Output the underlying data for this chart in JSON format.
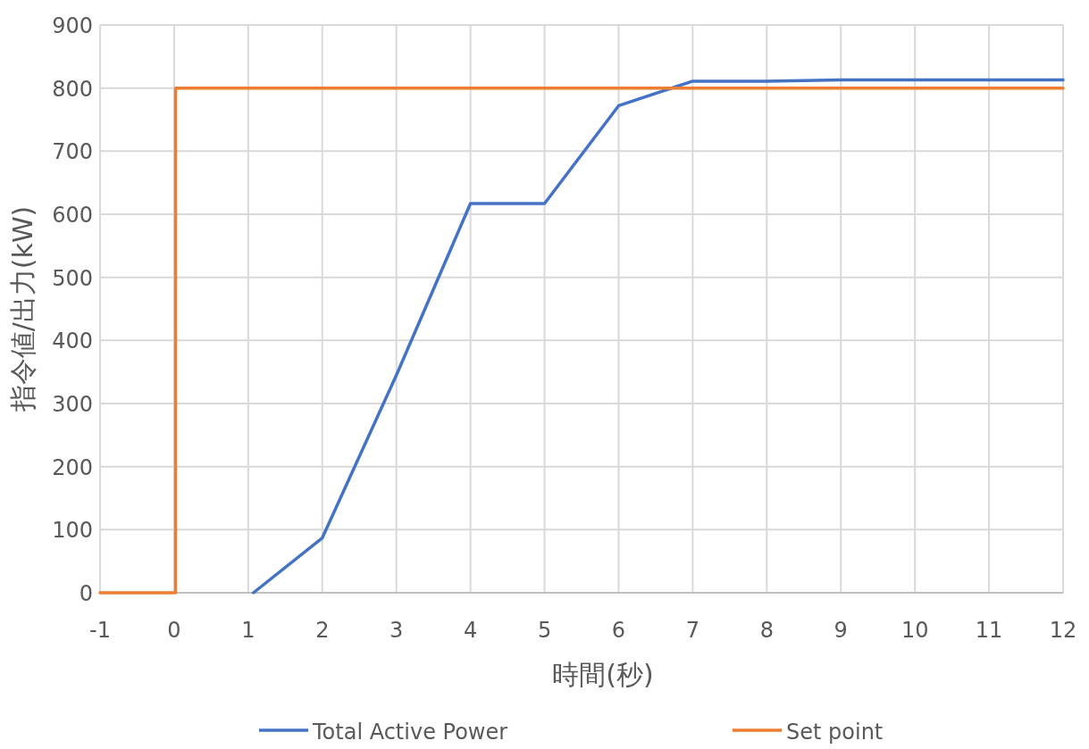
{
  "chart_data": {
    "type": "line",
    "xlabel": "時間(秒)",
    "ylabel": "指令値/出力(kW)",
    "xlim": [
      -1,
      12
    ],
    "xticks": [
      -1,
      0,
      1,
      2,
      3,
      4,
      5,
      6,
      7,
      8,
      9,
      10,
      11,
      12
    ],
    "ylim": [
      0,
      900
    ],
    "yticks": [
      0,
      100,
      200,
      300,
      400,
      500,
      600,
      700,
      800,
      900
    ],
    "grid": true,
    "legend": "bottom",
    "marker": "none",
    "line_style": "solid",
    "series": [
      {
        "name": "Total Active Power",
        "color": "#4472c4",
        "x": [
          1.07,
          2,
          3,
          4,
          5,
          6,
          7,
          8,
          9,
          10,
          11,
          12
        ],
        "values": [
          0,
          87,
          345,
          617,
          617,
          772,
          811,
          811,
          813,
          813,
          813,
          813
        ]
      },
      {
        "name": "Set point",
        "color": "#ed7d31",
        "x": [
          -1,
          0.02,
          0.02,
          12
        ],
        "values": [
          0,
          0,
          800,
          800
        ]
      }
    ]
  }
}
